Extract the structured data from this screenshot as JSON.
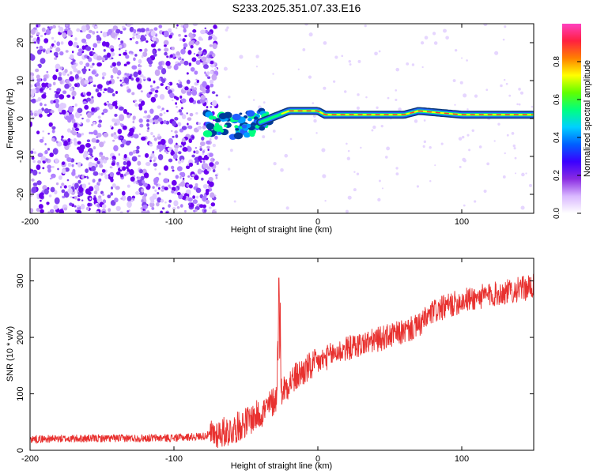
{
  "figure": {
    "title": "S233.2025.351.07.33.E16"
  },
  "colors": {
    "snr_line": "#e8312f",
    "ridge_core": "#ff3a2a",
    "ridge_mid": "#00ff80",
    "ridge_outer": "#2060ff",
    "noise_dark": "#6a00f0",
    "noise_light": "#c9a8f5",
    "spectrum_line": "#0a3a7a"
  },
  "chart_data": [
    {
      "type": "heatmap",
      "name": "spectrogram",
      "xlabel": "Height of straight line (km)",
      "ylabel": "Frequency (Hz)",
      "xlim": [
        -200,
        150
      ],
      "ylim": [
        -25,
        25
      ],
      "xticks": [
        -200,
        -100,
        0,
        100
      ],
      "xtick_labels": [
        "-200",
        "-100",
        "0",
        "100"
      ],
      "yticks": [
        -20,
        -10,
        0,
        10,
        20
      ],
      "ytick_labels": [
        "-20",
        "-10",
        "0",
        "10",
        "20"
      ],
      "ridge": {
        "description_points_x": [
          -78,
          -60,
          -40,
          -20,
          0,
          5,
          10,
          60,
          70,
          100,
          150
        ],
        "description_points_freq": [
          -1,
          -2,
          -1,
          2,
          2,
          1,
          1,
          1,
          2,
          1,
          1
        ]
      },
      "colorbar": {
        "label": "Normalized spectral amplitude",
        "range": [
          0,
          1
        ],
        "ticks": [
          0.0,
          0.2,
          0.4,
          0.6,
          0.8
        ],
        "tick_labels": [
          "0.0",
          "0.2",
          "0.4",
          "0.6",
          "0.8"
        ],
        "colormap": [
          "#ffffff",
          "#d9b8ff",
          "#8a2be2",
          "#3a00ff",
          "#0060ff",
          "#00d0ff",
          "#00ff80",
          "#60ff00",
          "#ffff00",
          "#ff8000",
          "#ff2040",
          "#ff40c0"
        ]
      }
    },
    {
      "type": "line",
      "name": "snr",
      "xlabel": "Height of straight line (km)",
      "ylabel": "SNR (10 * v/v)",
      "xlim": [
        -200,
        150
      ],
      "ylim": [
        0,
        340
      ],
      "xticks": [
        -200,
        -100,
        0,
        100
      ],
      "xtick_labels": [
        "-200",
        "-100",
        "0",
        "100"
      ],
      "yticks": [
        0,
        100,
        200,
        300
      ],
      "ytick_labels": [
        "0",
        "100",
        "200",
        "300"
      ],
      "trend_x": [
        -200,
        -100,
        -80,
        -60,
        -50,
        -40,
        -35,
        -30,
        -20,
        -10,
        0,
        10,
        20,
        40,
        60,
        70,
        80,
        100,
        120,
        150
      ],
      "trend_y": [
        20,
        22,
        25,
        35,
        50,
        65,
        75,
        90,
        120,
        140,
        155,
        170,
        180,
        195,
        210,
        220,
        245,
        265,
        275,
        290
      ],
      "spike": {
        "x": -27,
        "y": 305
      }
    }
  ]
}
